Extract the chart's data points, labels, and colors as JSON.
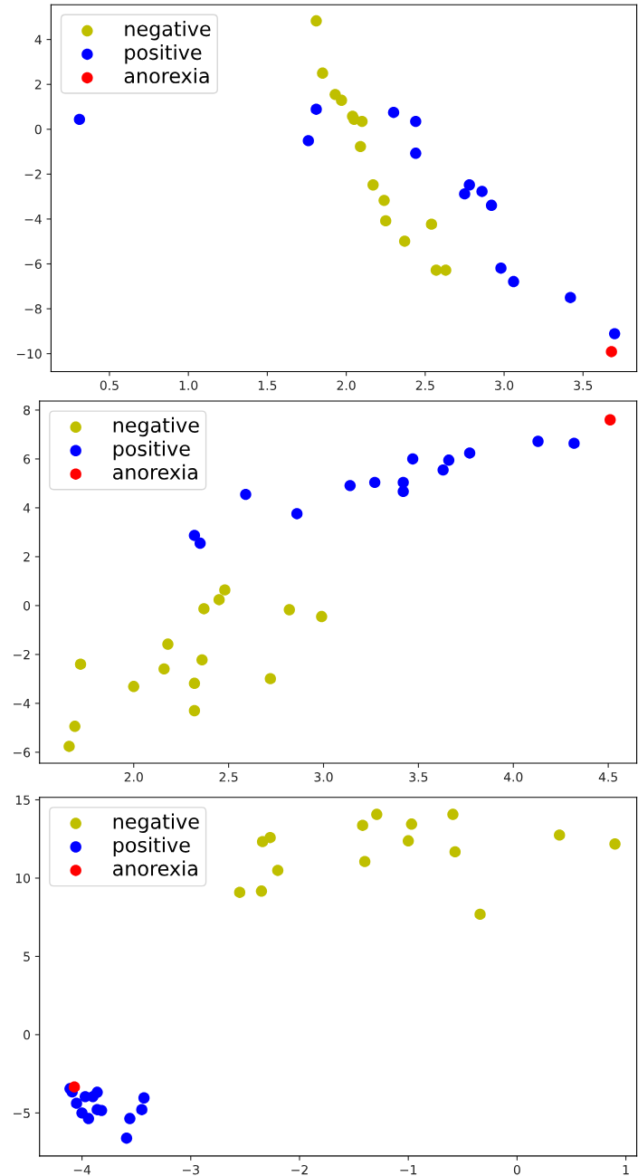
{
  "chart_data": [
    {
      "type": "scatter",
      "legend": "top left",
      "marker": "circle",
      "xlim": [
        0.13,
        3.84
      ],
      "ylim": [
        -10.8,
        5.55
      ],
      "xticks": [
        {
          "value": 0.5,
          "label": "0.5"
        },
        {
          "value": 1.0,
          "label": "1.0"
        },
        {
          "value": 1.5,
          "label": "1.5"
        },
        {
          "value": 2.0,
          "label": "2.0"
        },
        {
          "value": 2.5,
          "label": "2.5"
        },
        {
          "value": 3.0,
          "label": "3.0"
        },
        {
          "value": 3.5,
          "label": "3.5"
        }
      ],
      "yticks": [
        {
          "value": -10,
          "label": "−10"
        },
        {
          "value": -8,
          "label": "−8"
        },
        {
          "value": -6,
          "label": "−6"
        },
        {
          "value": -4,
          "label": "−4"
        },
        {
          "value": -2,
          "label": "−2"
        },
        0,
        2,
        4
      ],
      "series": [
        {
          "name": "negative",
          "color": "#bfbf00",
          "x": [
            1.81,
            1.85,
            1.93,
            1.97,
            2.04,
            2.05,
            2.1,
            2.09,
            2.17,
            2.24,
            2.25,
            2.37,
            2.54,
            2.57,
            2.63
          ],
          "values": [
            4.83,
            2.5,
            1.55,
            1.29,
            0.58,
            0.44,
            0.35,
            -0.77,
            -2.48,
            -3.17,
            -4.08,
            -4.99,
            -4.23,
            -6.28,
            -6.28
          ]
        },
        {
          "name": "positive",
          "color": "#0000ff",
          "x": [
            0.31,
            1.81,
            1.76,
            2.3,
            2.44,
            2.44,
            2.78,
            2.75,
            2.86,
            2.92,
            2.98,
            3.06,
            3.42,
            3.7
          ],
          "values": [
            0.44,
            0.89,
            -0.51,
            0.75,
            0.35,
            -1.07,
            -2.48,
            -2.88,
            -2.77,
            -3.39,
            -6.19,
            -6.79,
            -7.5,
            -9.11
          ]
        },
        {
          "name": "anorexia",
          "color": "#ff0000",
          "x": [
            3.68
          ],
          "values": [
            -9.91
          ]
        }
      ]
    },
    {
      "type": "scatter",
      "legend": "top left",
      "marker": "circle",
      "xlim": [
        1.504,
        4.65
      ],
      "ylim": [
        -6.45,
        8.37
      ],
      "xticks": [
        {
          "value": 2.0,
          "label": "2.0"
        },
        {
          "value": 2.5,
          "label": "2.5"
        },
        {
          "value": 3.0,
          "label": "3.0"
        },
        {
          "value": 3.5,
          "label": "3.5"
        },
        {
          "value": 4.0,
          "label": "4.0"
        },
        {
          "value": 4.5,
          "label": "4.5"
        }
      ],
      "yticks": [
        {
          "value": -6,
          "label": "−6"
        },
        {
          "value": -4,
          "label": "−4"
        },
        {
          "value": -2,
          "label": "−2"
        },
        0,
        2,
        4,
        6,
        8
      ],
      "series": [
        {
          "name": "negative",
          "color": "#bfbf00",
          "x": [
            1.66,
            1.69,
            1.72,
            2.0,
            2.16,
            2.18,
            2.32,
            2.32,
            2.36,
            2.37,
            2.45,
            2.48,
            2.72,
            2.82,
            2.99
          ],
          "values": [
            -5.76,
            -4.94,
            -2.4,
            -3.31,
            -2.59,
            -1.58,
            -4.3,
            -3.18,
            -2.22,
            -0.13,
            0.24,
            0.64,
            -2.99,
            -0.17,
            -0.45
          ]
        },
        {
          "name": "positive",
          "color": "#0000ff",
          "x": [
            2.32,
            2.35,
            2.59,
            2.86,
            3.14,
            3.27,
            3.42,
            3.42,
            3.47,
            3.63,
            3.66,
            3.77,
            4.13,
            4.32
          ],
          "values": [
            2.87,
            2.55,
            4.55,
            3.76,
            4.91,
            5.04,
            5.04,
            4.67,
            6.0,
            5.55,
            5.95,
            6.24,
            6.72,
            6.64
          ]
        },
        {
          "name": "anorexia",
          "color": "#ff0000",
          "x": [
            4.51
          ],
          "values": [
            7.6
          ]
        }
      ]
    },
    {
      "type": "scatter",
      "legend": "top left",
      "marker": "circle",
      "xlim": [
        -4.39,
        1.1
      ],
      "ylim": [
        -7.75,
        15.16
      ],
      "xticks": [
        {
          "value": -4,
          "label": "−4"
        },
        {
          "value": -3,
          "label": "−3"
        },
        {
          "value": -2,
          "label": "−2"
        },
        {
          "value": -1,
          "label": "−1"
        },
        0,
        1
      ],
      "yticks": [
        {
          "value": -5,
          "label": "−5"
        },
        0,
        5,
        10,
        15
      ],
      "series": [
        {
          "name": "negative",
          "color": "#bfbf00",
          "x": [
            -2.55,
            -2.35,
            -2.34,
            -2.27,
            -2.2,
            -1.42,
            -1.29,
            -1.4,
            -1.0,
            -0.97,
            -0.59,
            -0.57,
            -0.34,
            0.39,
            0.9
          ],
          "values": [
            9.09,
            9.17,
            12.33,
            12.59,
            10.49,
            13.37,
            14.07,
            11.06,
            12.38,
            13.45,
            14.07,
            11.68,
            7.69,
            12.75,
            12.18
          ]
        },
        {
          "name": "positive",
          "color": "#0000ff",
          "x": [
            -4.11,
            -4.09,
            -4.05,
            -3.97,
            -3.9,
            -3.86,
            -4.0,
            -3.94,
            -3.86,
            -3.82,
            -3.56,
            -3.59,
            -3.45,
            -3.43
          ],
          "values": [
            -3.45,
            -3.65,
            -4.38,
            -3.96,
            -3.96,
            -3.68,
            -5.0,
            -5.36,
            -4.79,
            -4.84,
            -5.36,
            -6.61,
            -4.79,
            -4.04
          ]
        },
        {
          "name": "anorexia",
          "color": "#ff0000",
          "x": [
            -4.07
          ],
          "values": [
            -3.34
          ]
        }
      ]
    }
  ]
}
